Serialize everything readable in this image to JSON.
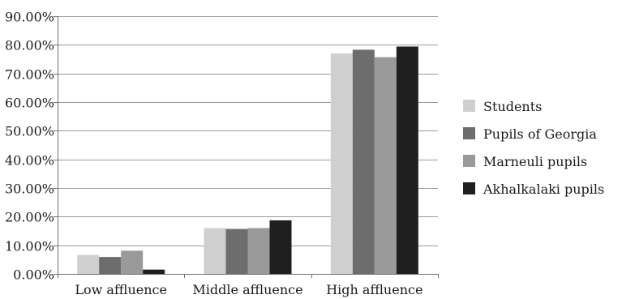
{
  "chart_data": {
    "type": "bar",
    "title": "",
    "xlabel": "",
    "ylabel": "",
    "categories": [
      "Low affluence",
      "Middle affluence",
      "High affluence"
    ],
    "ylim": [
      0,
      90
    ],
    "yticks": [
      0,
      10,
      20,
      30,
      40,
      50,
      60,
      70,
      80,
      90
    ],
    "tick_format": "percent_2dp",
    "grid": true,
    "legend": "right",
    "series": [
      {
        "name": "Students",
        "color": "#cfcfcf",
        "values": [
          6.6,
          16.0,
          77.0
        ]
      },
      {
        "name": "Pupils of Georgia",
        "color": "#6d6d6d",
        "values": [
          5.9,
          15.7,
          78.3
        ]
      },
      {
        "name": "Marneuli pupils",
        "color": "#9a9a9a",
        "values": [
          8.1,
          16.0,
          75.7
        ]
      },
      {
        "name": "Akhalkalaki pupils",
        "color": "#1f1f1f",
        "values": [
          1.5,
          18.7,
          79.4
        ]
      }
    ]
  }
}
